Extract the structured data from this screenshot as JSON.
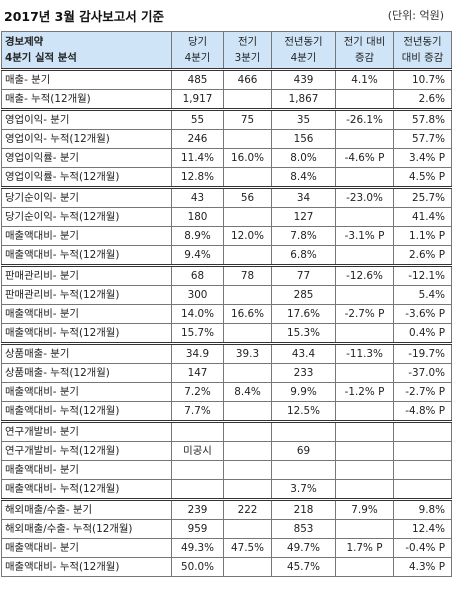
{
  "header": {
    "title": "2017년 3월 감사보고서 기준",
    "unit": "(단위: 억원)"
  },
  "table": {
    "columns": [
      "경보제약\n4분기 실적 분석",
      "당기\n4분기",
      "전기\n3분기",
      "전년동기\n4분기",
      "전기 대비\n증감",
      "전년동기\n대비 증감"
    ],
    "groups": [
      [
        {
          "label": "매출- 분기",
          "cur": "485",
          "prev": "466",
          "yoy": "439",
          "qoq_chg": "4.1%",
          "yoy_chg": "10.7%"
        },
        {
          "label": "매출- 누적(12개월)",
          "cur": "1,917",
          "prev": "",
          "yoy": "1,867",
          "qoq_chg": "",
          "yoy_chg": "2.6%"
        }
      ],
      [
        {
          "label": "영업이익- 분기",
          "cur": "55",
          "prev": "75",
          "yoy": "35",
          "qoq_chg": "-26.1%",
          "yoy_chg": "57.8%"
        },
        {
          "label": "영업이익- 누적(12개월)",
          "cur": "246",
          "prev": "",
          "yoy": "156",
          "qoq_chg": "",
          "yoy_chg": "57.7%"
        },
        {
          "label": "영업이익률- 분기",
          "cur": "11.4%",
          "prev": "16.0%",
          "yoy": "8.0%",
          "qoq_chg": "-4.6% P",
          "yoy_chg": "3.4% P"
        },
        {
          "label": "영업이익률- 누적(12개월)",
          "cur": "12.8%",
          "prev": "",
          "yoy": "8.4%",
          "qoq_chg": "",
          "yoy_chg": "4.5% P"
        }
      ],
      [
        {
          "label": "당기순이익- 분기",
          "cur": "43",
          "prev": "56",
          "yoy": "34",
          "qoq_chg": "-23.0%",
          "yoy_chg": "25.7%"
        },
        {
          "label": "당기순이익- 누적(12개월)",
          "cur": "180",
          "prev": "",
          "yoy": "127",
          "qoq_chg": "",
          "yoy_chg": "41.4%"
        },
        {
          "label": "매출액대비- 분기",
          "cur": "8.9%",
          "prev": "12.0%",
          "yoy": "7.8%",
          "qoq_chg": "-3.1% P",
          "yoy_chg": "1.1% P"
        },
        {
          "label": "매출액대비- 누적(12개월)",
          "cur": "9.4%",
          "prev": "",
          "yoy": "6.8%",
          "qoq_chg": "",
          "yoy_chg": "2.6% P"
        }
      ],
      [
        {
          "label": "판매관리비- 분기",
          "cur": "68",
          "prev": "78",
          "yoy": "77",
          "qoq_chg": "-12.6%",
          "yoy_chg": "-12.1%"
        },
        {
          "label": "판매관리비- 누적(12개월)",
          "cur": "300",
          "prev": "",
          "yoy": "285",
          "qoq_chg": "",
          "yoy_chg": "5.4%"
        },
        {
          "label": "매출액대비- 분기",
          "cur": "14.0%",
          "prev": "16.6%",
          "yoy": "17.6%",
          "qoq_chg": "-2.7% P",
          "yoy_chg": "-3.6% P"
        },
        {
          "label": "매출액대비- 누적(12개월)",
          "cur": "15.7%",
          "prev": "",
          "yoy": "15.3%",
          "qoq_chg": "",
          "yoy_chg": "0.4% P"
        }
      ],
      [
        {
          "label": "상품매출- 분기",
          "cur": "34.9",
          "prev": "39.3",
          "yoy": "43.4",
          "qoq_chg": "-11.3%",
          "yoy_chg": "-19.7%"
        },
        {
          "label": "상품매출- 누적(12개월)",
          "cur": "147",
          "prev": "",
          "yoy": "233",
          "qoq_chg": "",
          "yoy_chg": "-37.0%"
        },
        {
          "label": "매출액대비- 분기",
          "cur": "7.2%",
          "prev": "8.4%",
          "yoy": "9.9%",
          "qoq_chg": "-1.2% P",
          "yoy_chg": "-2.7% P"
        },
        {
          "label": "매출액대비- 누적(12개월)",
          "cur": "7.7%",
          "prev": "",
          "yoy": "12.5%",
          "qoq_chg": "",
          "yoy_chg": "-4.8% P"
        }
      ],
      [
        {
          "label": "연구개발비- 분기",
          "cur": "",
          "prev": "",
          "yoy": "",
          "qoq_chg": "",
          "yoy_chg": ""
        },
        {
          "label": "연구개발비- 누적(12개월)",
          "cur": "미공시",
          "prev": "",
          "yoy": "69",
          "qoq_chg": "",
          "yoy_chg": ""
        },
        {
          "label": "매출액대비- 분기",
          "cur": "",
          "prev": "",
          "yoy": "",
          "qoq_chg": "",
          "yoy_chg": ""
        },
        {
          "label": "매출액대비- 누적(12개월)",
          "cur": "",
          "prev": "",
          "yoy": "3.7%",
          "qoq_chg": "",
          "yoy_chg": ""
        }
      ],
      [
        {
          "label": "해외매출/수출- 분기",
          "cur": "239",
          "prev": "222",
          "yoy": "218",
          "qoq_chg": "7.9%",
          "yoy_chg": "9.8%"
        },
        {
          "label": "해외매출/수출- 누적(12개월)",
          "cur": "959",
          "prev": "",
          "yoy": "853",
          "qoq_chg": "",
          "yoy_chg": "12.4%"
        },
        {
          "label": "매출액대비- 분기",
          "cur": "49.3%",
          "prev": "47.5%",
          "yoy": "49.7%",
          "qoq_chg": "1.7% P",
          "yoy_chg": "-0.4% P"
        },
        {
          "label": "매출액대비- 누적(12개월)",
          "cur": "50.0%",
          "prev": "",
          "yoy": "45.7%",
          "qoq_chg": "",
          "yoy_chg": "4.3% P"
        }
      ]
    ]
  }
}
